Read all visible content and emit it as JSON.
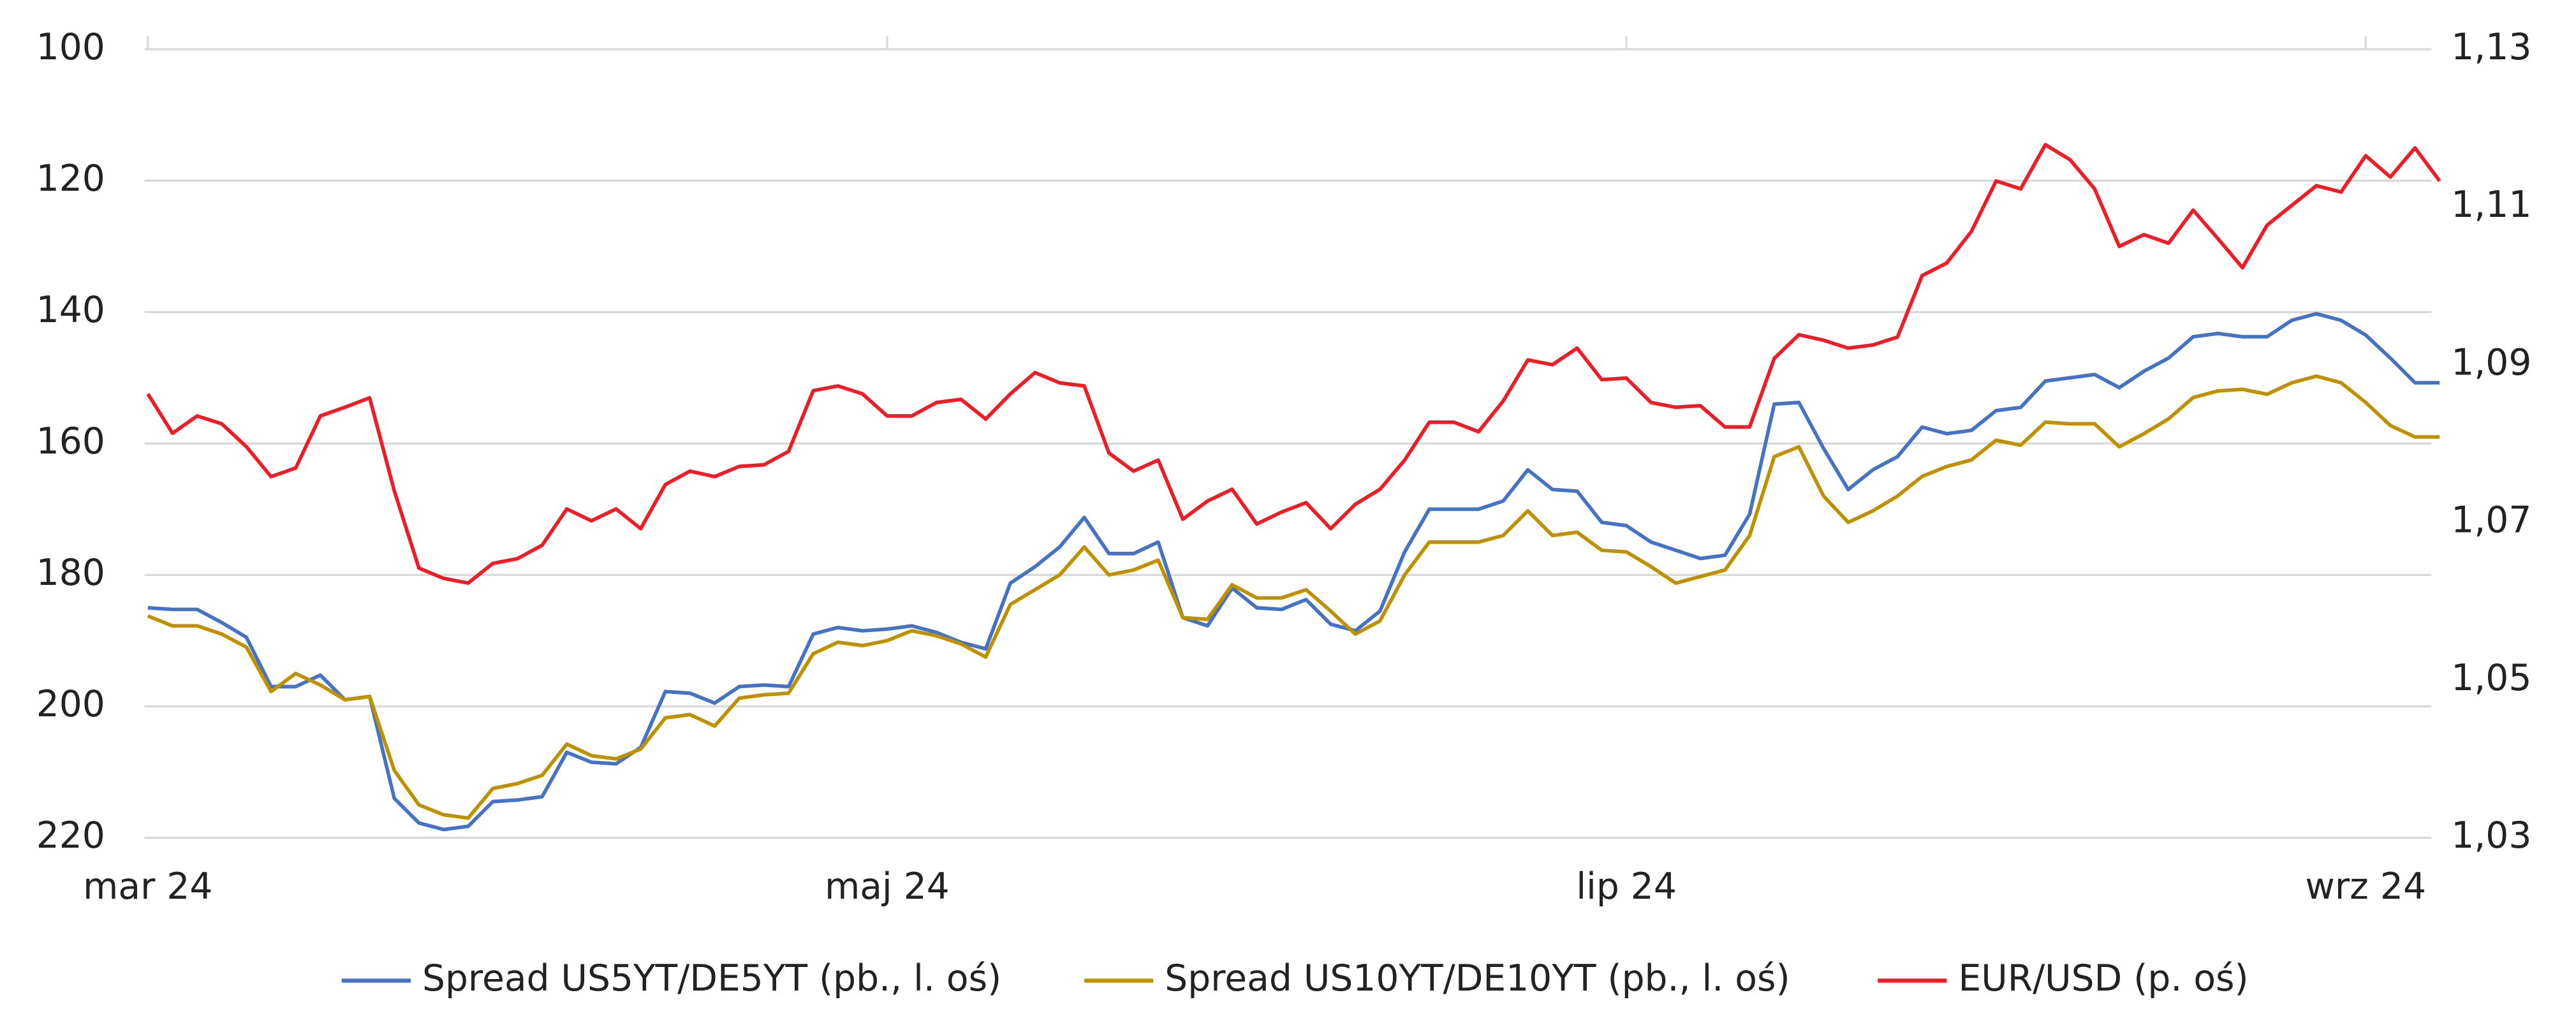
{
  "chart_data": {
    "type": "line",
    "categories": [
      "mar 24",
      null,
      null,
      null,
      null,
      null,
      null,
      null,
      null,
      null,
      null,
      null,
      null,
      null,
      null,
      null,
      null,
      null,
      null,
      null,
      null,
      null,
      null,
      null,
      null,
      null,
      null,
      null,
      null,
      null,
      "maj 24",
      null,
      null,
      null,
      null,
      null,
      null,
      null,
      null,
      null,
      null,
      null,
      null,
      null,
      null,
      null,
      null,
      null,
      null,
      null,
      null,
      null,
      null,
      null,
      null,
      null,
      null,
      null,
      null,
      null,
      "lip 24",
      null,
      null,
      null,
      null,
      null,
      null,
      null,
      null,
      null,
      null,
      null,
      null,
      null,
      null,
      null,
      null,
      null,
      null,
      null,
      null,
      null,
      null,
      null,
      null,
      null,
      null,
      null,
      null,
      null,
      "wrz 24",
      null,
      null,
      null
    ],
    "ylim": [
      100,
      220
    ],
    "y_inverted": true,
    "yticks": [
      100,
      120,
      140,
      160,
      180,
      200,
      220
    ],
    "y2lim": [
      1.03,
      1.13
    ],
    "y2ticks": [
      {
        "value": 1.13,
        "label": "1,13"
      },
      {
        "value": 1.11,
        "label": "1,11"
      },
      {
        "value": 1.09,
        "label": "1,09"
      },
      {
        "value": 1.07,
        "label": "1,07"
      },
      {
        "value": 1.05,
        "label": "1,05"
      },
      {
        "value": 1.03,
        "label": "1,03"
      }
    ],
    "grid": true,
    "legend": "bottom",
    "series": [
      {
        "name": "Spread US5YT/DE5YT (pb., l. oś)",
        "color": "#4472c4",
        "axis": "y",
        "values": [
          185,
          185.25,
          185.25,
          187.25,
          189.5,
          197,
          197,
          195.25,
          199,
          198.5,
          214,
          217.75,
          218.75,
          218.25,
          214.5,
          214.25,
          213.75,
          207,
          208.5,
          208.75,
          206.25,
          197.75,
          198,
          199.5,
          197,
          196.75,
          197,
          189,
          188,
          188.5,
          188.25,
          187.75,
          188.75,
          190.25,
          191.25,
          181.25,
          178.75,
          175.75,
          171.25,
          176.75,
          176.75,
          175,
          186.5,
          187.75,
          182,
          185,
          185.25,
          183.75,
          187.5,
          188.5,
          185.5,
          176.5,
          170,
          170,
          170,
          168.75,
          164,
          167,
          167.25,
          172,
          172.5,
          175,
          176.25,
          177.5,
          177,
          170.75,
          154,
          153.75,
          160.75,
          167,
          164,
          162,
          157.5,
          158.5,
          158,
          155,
          154.5,
          150.5,
          150,
          149.5,
          151.5,
          149,
          147,
          143.75,
          143.25,
          143.75,
          143.75,
          141.25,
          140.25,
          141.25,
          143.5,
          147,
          150.75,
          150.75
        ]
      },
      {
        "name": "Spread US10YT/DE10YT (pb., l. oś)",
        "color": "#bf9000",
        "axis": "y",
        "values": [
          186.25,
          187.75,
          187.75,
          189,
          191,
          197.75,
          195,
          196.75,
          199,
          198.5,
          209.75,
          215,
          216.5,
          217,
          212.5,
          211.75,
          210.5,
          205.75,
          207.5,
          208,
          206.5,
          201.75,
          201.25,
          203,
          198.75,
          198.25,
          198,
          192,
          190.25,
          190.75,
          190,
          188.5,
          189.25,
          190.5,
          192.5,
          184.5,
          182.25,
          180,
          175.75,
          180,
          179.25,
          177.75,
          186.5,
          186.75,
          181.5,
          183.5,
          183.5,
          182.25,
          185.5,
          189,
          187,
          180,
          175,
          175,
          175,
          174,
          170.25,
          174,
          173.5,
          176.25,
          176.5,
          178.75,
          181.25,
          180.25,
          179.25,
          174,
          162,
          160.5,
          168,
          172,
          170.25,
          168,
          165,
          163.5,
          162.5,
          159.5,
          160.25,
          156.75,
          157,
          157,
          160.5,
          158.5,
          156.25,
          153,
          152,
          151.75,
          152.5,
          150.75,
          149.75,
          150.75,
          153.75,
          157.25,
          159,
          159
        ]
      },
      {
        "name": "EUR/USD (p. oś)",
        "color": "#ee1c25",
        "axis": "y2",
        "values": [
          1.0863,
          1.0813,
          1.0835,
          1.0825,
          1.0796,
          1.0758,
          1.0769,
          1.0835,
          1.0846,
          1.0858,
          1.074,
          1.0642,
          1.0629,
          1.0623,
          1.0648,
          1.0654,
          1.0671,
          1.0717,
          1.0702,
          1.0717,
          1.0692,
          1.0748,
          1.0765,
          1.0758,
          1.0771,
          1.0773,
          1.079,
          1.0867,
          1.0873,
          1.0863,
          1.0835,
          1.0835,
          1.0852,
          1.0856,
          1.0831,
          1.0863,
          1.089,
          1.0877,
          1.0873,
          1.0788,
          1.0765,
          1.0779,
          1.0704,
          1.0727,
          1.0742,
          1.0698,
          1.0713,
          1.0725,
          1.0692,
          1.0723,
          1.0742,
          1.0779,
          1.0827,
          1.0827,
          1.0815,
          1.0854,
          1.0906,
          1.09,
          1.0921,
          1.0881,
          1.0883,
          1.0852,
          1.0846,
          1.0848,
          1.0821,
          1.0821,
          1.0908,
          1.0938,
          1.0931,
          1.0921,
          1.0925,
          1.0935,
          1.1013,
          1.1029,
          1.1069,
          1.1133,
          1.1123,
          1.1179,
          1.116,
          1.1123,
          1.105,
          1.1065,
          1.1054,
          1.1096,
          1.106,
          1.1023,
          1.1077,
          1.1102,
          1.1127,
          1.1119,
          1.1165,
          1.1138,
          1.1175,
          1.1133
        ]
      }
    ]
  }
}
